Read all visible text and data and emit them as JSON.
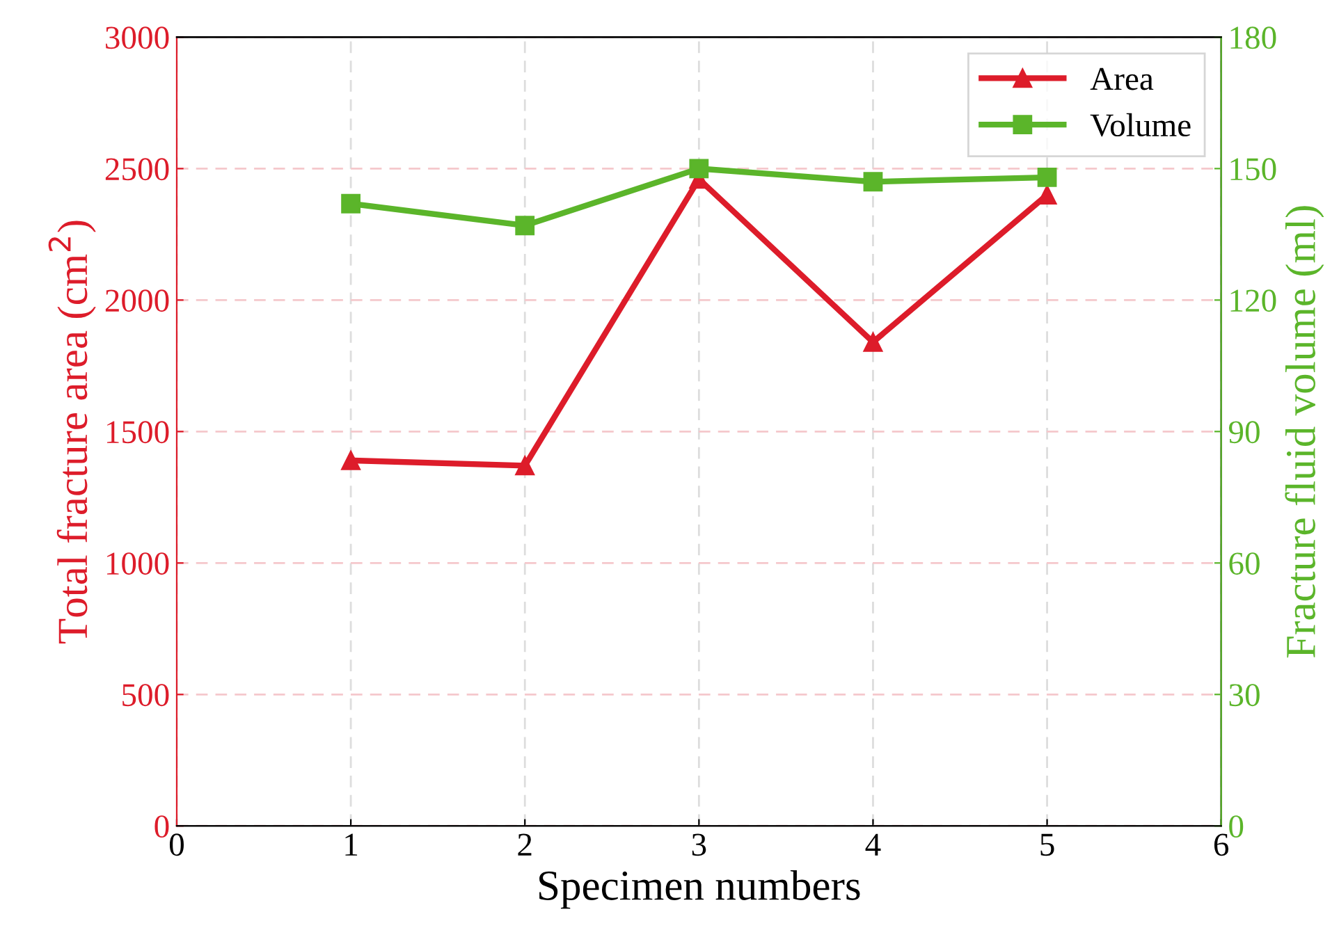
{
  "chart_data": {
    "type": "line",
    "xlabel": "Specimen numbers",
    "ylabel": "Total fracture area (cm$^{2}$)",
    "y2label": "Fracture fluid volume (ml)",
    "x": [
      1,
      2,
      3,
      4,
      5
    ],
    "xlim": [
      0,
      6
    ],
    "xticks": [
      0,
      1,
      2,
      3,
      4,
      5,
      6
    ],
    "ylim": [
      0,
      3000
    ],
    "yticks": [
      0,
      500,
      1000,
      1500,
      2000,
      2500,
      3000
    ],
    "y2lim": [
      0,
      180
    ],
    "y2ticks": [
      0,
      30,
      60,
      90,
      120,
      150,
      180
    ],
    "series": [
      {
        "name": "Area",
        "color": "#dd1c2a",
        "marker": "triangle",
        "values": [
          1390,
          1370,
          2460,
          1840,
          2400
        ]
      },
      {
        "name": "Volume",
        "color": "#5bb52a",
        "marker": "square",
        "axis": "y2",
        "values": [
          142,
          137,
          150,
          147,
          148
        ]
      }
    ],
    "grid": true,
    "legend": "top right",
    "line_style": "solid"
  }
}
